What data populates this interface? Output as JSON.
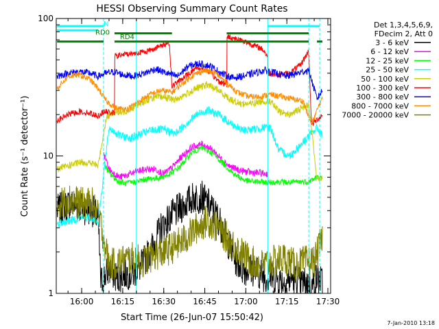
{
  "colors": {
    "background": "#ffffff",
    "axis": "#000000",
    "cyan": "#00ffff",
    "green_flag": "#008000"
  },
  "chart_data": {
    "type": "line",
    "title": "HESSI Observing Summary Count Rates",
    "xlabel": "Start Time (26-Jun-07 15:50:42)",
    "ylabel": "Count Rate (s⁻¹ detector⁻¹)",
    "x_unit": "time",
    "xlim": [
      "15:50:42",
      "17:31:00"
    ],
    "x_tick_labels": [
      "16:00",
      "16:15",
      "16:30",
      "16:45",
      "17:00",
      "17:15",
      "17:30"
    ],
    "y_scale": "log",
    "ylim": [
      1,
      100
    ],
    "y_tick_labels": [
      "1",
      "10",
      "100"
    ],
    "legend_header": [
      "Det 1,3,4,5,6,9,",
      "FDecim 2, Att 0"
    ],
    "legend_position": "right",
    "footer_date": "7-Jan-2010 13:18",
    "annotations": [
      {
        "text": "N",
        "time": "16:08"
      },
      {
        "text": "RD0",
        "time": "16:05"
      },
      {
        "text": "RD4",
        "time": "16:14"
      }
    ],
    "vertical_markers": {
      "solid": [
        "16:20",
        "17:08"
      ],
      "dashed": [
        "16:08",
        "17:23",
        "17:27"
      ]
    },
    "flag_bars": [
      {
        "label": "N",
        "color": "#00ffff",
        "y": 88,
        "segments": [
          [
            "15:51",
            "16:08"
          ],
          [
            "17:08",
            "17:27"
          ]
        ]
      },
      {
        "label": "RD0",
        "color": "#00ffff",
        "y": 82,
        "segments": [
          [
            "15:51",
            "16:06"
          ]
        ]
      },
      {
        "label": "RD4",
        "color": "#008000",
        "y": 78,
        "segments": [
          [
            "16:12",
            "16:33"
          ],
          [
            "16:53",
            "17:23"
          ]
        ]
      },
      {
        "label": "",
        "color": "#008000",
        "y": 68,
        "segments": [
          [
            "15:51",
            "16:08"
          ],
          [
            "16:12",
            "17:23"
          ],
          [
            "17:26",
            "17:28"
          ]
        ]
      }
    ],
    "series": [
      {
        "name": "3 - 6 keV",
        "color": "#000000",
        "x": [
          "15:51",
          "15:56",
          "16:00",
          "16:04",
          "16:06",
          "16:07",
          "16:10",
          "16:13",
          "16:16",
          "16:19",
          "16:22",
          "16:26",
          "16:29",
          "16:32",
          "16:35",
          "16:38",
          "16:41",
          "16:44",
          "16:47",
          "16:50",
          "16:53",
          "16:56",
          "16:59",
          "17:02",
          "17:05",
          "17:08",
          "17:11",
          "17:14",
          "17:17",
          "17:20",
          "17:22",
          "17:24",
          "17:26",
          "17:28"
        ],
        "y": [
          4,
          4.5,
          4.2,
          4,
          3.5,
          1.2,
          1.5,
          1.3,
          1.4,
          1.4,
          1.6,
          2.2,
          3,
          3.5,
          4,
          4.5,
          5,
          5,
          4.3,
          3.5,
          2.5,
          1.8,
          1.5,
          1.5,
          1.4,
          1.3,
          1.3,
          1.2,
          1.3,
          1.2,
          1.2,
          1.1,
          1.3,
          1.2
        ]
      },
      {
        "name": "6 - 12 keV",
        "color": "#ff00ff",
        "x": [
          "16:08",
          "16:10",
          "16:12",
          "16:14",
          "16:17",
          "16:20",
          "16:24",
          "16:27",
          "16:30",
          "16:33",
          "16:36",
          "16:40",
          "16:44",
          "16:48",
          "16:51",
          "16:54",
          "16:58",
          "17:02",
          "17:05",
          "17:08"
        ],
        "y": [
          10.5,
          8,
          7.4,
          7,
          7.3,
          7.7,
          8,
          8,
          7.4,
          8.2,
          9.6,
          11.5,
          12.2,
          11,
          9.5,
          8.4,
          7.8,
          7.6,
          7.5,
          7.4
        ]
      },
      {
        "name": "12 - 25 keV",
        "color": "#00ff00",
        "x": [
          "16:08",
          "16:10",
          "16:13",
          "16:16",
          "16:20",
          "16:24",
          "16:28",
          "16:32",
          "16:36",
          "16:40",
          "16:44",
          "16:48",
          "16:52",
          "16:56",
          "17:00",
          "17:04",
          "17:08",
          "17:12",
          "17:16",
          "17:20",
          "17:23",
          "17:26",
          "17:28"
        ],
        "y": [
          9,
          7.5,
          6.6,
          6.3,
          6.5,
          6.8,
          6.9,
          7.3,
          8.4,
          10.5,
          11.5,
          10.4,
          8.7,
          7.3,
          6.6,
          6.5,
          6.4,
          6.5,
          6.4,
          6.5,
          6.5,
          7,
          6.8
        ]
      },
      {
        "name": "25 - 50 keV",
        "color": "#00ffff",
        "x": [
          "15:51",
          "15:56",
          "16:00",
          "16:04",
          "16:06",
          "16:10",
          "16:14",
          "16:18",
          "16:22",
          "16:26",
          "16:30",
          "16:34",
          "16:38",
          "16:42",
          "16:46",
          "16:50",
          "16:54",
          "16:58",
          "17:02",
          "17:06",
          "17:09",
          "17:12",
          "17:16",
          "17:20",
          "17:23",
          "17:26",
          "17:28"
        ],
        "y": [
          3.2,
          3.4,
          3.6,
          3.5,
          3.3,
          16,
          14,
          13.5,
          14.5,
          15.5,
          15.5,
          14.5,
          17,
          20,
          21.5,
          20,
          17.5,
          15.5,
          15.5,
          16,
          16,
          11,
          10,
          12,
          14,
          16,
          14
        ]
      },
      {
        "name": "50 - 100 keV",
        "color": "#cccc00",
        "x": [
          "15:51",
          "15:56",
          "16:00",
          "16:04",
          "16:06",
          "16:09",
          "16:12",
          "16:14",
          "16:18",
          "16:22",
          "16:26",
          "16:30",
          "16:34",
          "16:38",
          "16:42",
          "16:46",
          "16:50",
          "16:54",
          "16:58",
          "17:02",
          "17:06",
          "17:09",
          "17:12",
          "17:16",
          "17:20",
          "17:23",
          "17:26",
          "17:28"
        ],
        "y": [
          8,
          8.6,
          9,
          8.8,
          8.5,
          19,
          21,
          20.5,
          22,
          24.5,
          26.5,
          27,
          25.5,
          28,
          31,
          33,
          30,
          26,
          24,
          24,
          25,
          25,
          21,
          20,
          22,
          24,
          6.8,
          7
        ]
      },
      {
        "name": "100 - 300 keV",
        "color": "#ff0000",
        "x": [
          "15:51",
          "15:55",
          "15:59",
          "16:03",
          "16:06",
          "16:08",
          "16:12",
          "16:12",
          "16:16",
          "16:20",
          "16:24",
          "16:28",
          "16:32",
          "16:33",
          "16:38",
          "16:42",
          "16:46",
          "16:50",
          "16:53",
          "16:53",
          "16:58",
          "17:02",
          "17:06",
          "17:08",
          "17:08",
          "17:12",
          "17:16",
          "17:20",
          "17:23",
          "17:24",
          "17:27",
          "17:28"
        ],
        "y": [
          18,
          20,
          21,
          20.5,
          19.5,
          21,
          20.5,
          53,
          55,
          56,
          58,
          62,
          67,
          32,
          38,
          44,
          42,
          35,
          33,
          74,
          70,
          65,
          60,
          53,
          40,
          39,
          40,
          46,
          58,
          17,
          19,
          20
        ]
      },
      {
        "name": "300 - 800 keV",
        "color": "#0000ff",
        "x": [
          "15:51",
          "15:55",
          "15:59",
          "16:03",
          "16:06",
          "16:09",
          "16:12",
          "16:15",
          "16:19",
          "16:23",
          "16:27",
          "16:31",
          "16:35",
          "16:39",
          "16:43",
          "16:47",
          "16:51",
          "16:55",
          "16:59",
          "17:03",
          "17:07",
          "17:11",
          "17:15",
          "17:19",
          "17:23",
          "17:26",
          "17:28"
        ],
        "y": [
          38,
          40,
          41,
          40,
          38,
          40,
          41,
          39,
          38,
          40,
          43,
          40,
          38,
          45,
          47,
          45,
          40,
          37,
          38,
          40,
          42,
          40,
          38,
          40,
          42,
          26,
          30
        ]
      },
      {
        "name": "800 - 7000 keV",
        "color": "#ff8c00",
        "x": [
          "15:51",
          "15:55",
          "15:59",
          "16:03",
          "16:06",
          "16:09",
          "16:13",
          "16:17",
          "16:21",
          "16:25",
          "16:29",
          "16:33",
          "16:37",
          "16:41",
          "16:45",
          "16:49",
          "16:53",
          "16:57",
          "17:01",
          "17:05",
          "17:09",
          "17:13",
          "17:17",
          "17:21",
          "17:24",
          "17:27",
          "17:28"
        ],
        "y": [
          31,
          38,
          39,
          36,
          31,
          25,
          22,
          22,
          25,
          28,
          30,
          29,
          34,
          39,
          42,
          40,
          34,
          29,
          27,
          27,
          28,
          27,
          26,
          25,
          17,
          24,
          26
        ]
      },
      {
        "name": "7000 - 20000 keV",
        "color": "#808000",
        "x": [
          "15:51",
          "15:56",
          "16:00",
          "16:04",
          "16:07",
          "16:10",
          "16:14",
          "16:18",
          "16:22",
          "16:26",
          "16:30",
          "16:34",
          "16:38",
          "16:42",
          "16:46",
          "16:50",
          "16:54",
          "16:58",
          "17:02",
          "17:06",
          "17:10",
          "17:14",
          "17:18",
          "17:22",
          "17:25",
          "17:28"
        ],
        "y": [
          4.5,
          4.8,
          4.5,
          4.5,
          3.2,
          1.6,
          1.7,
          1.8,
          1.7,
          1.9,
          2.0,
          2.2,
          2.5,
          3.0,
          3.4,
          3.0,
          2.4,
          2.0,
          1.7,
          1.6,
          1.7,
          1.8,
          1.6,
          1.7,
          1.7,
          2.5
        ]
      }
    ]
  }
}
